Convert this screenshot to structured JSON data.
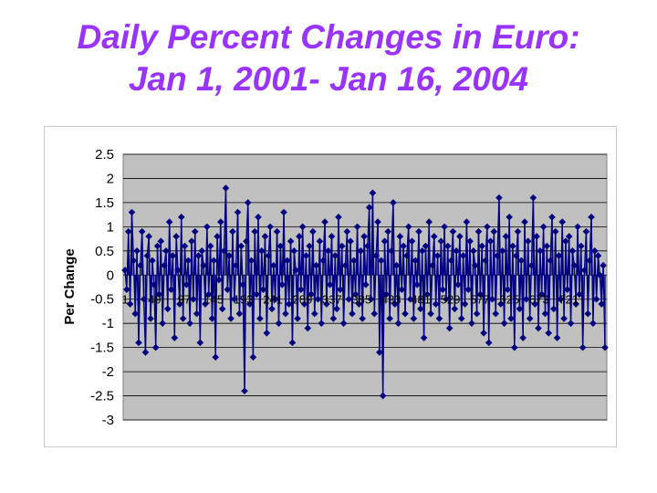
{
  "slide": {
    "title_line1": "Daily Percent Changes in Euro:",
    "title_line2": "Jan 1, 2001- Jan 16, 2004"
  },
  "colors": {
    "title": "#9933ff",
    "plot_background": "#c0c0c0",
    "series": "#000080",
    "gridline": "#000000"
  },
  "chart_data": {
    "type": "line",
    "title": "",
    "xlabel": "",
    "ylabel": "Per Change",
    "ylim": [
      -3,
      2.5
    ],
    "ytick_labels": [
      "2.5",
      "2",
      "1.5",
      "1",
      "0.5",
      "0",
      "-0.5",
      "-1",
      "-1.5",
      "-2",
      "-2.5",
      "-3"
    ],
    "xtick_labels": [
      "1",
      "49",
      "97",
      "145",
      "193",
      "241",
      "289",
      "337",
      "385",
      "433",
      "481",
      "529",
      "577",
      "625",
      "673",
      "721"
    ],
    "xlim": [
      1,
      780
    ],
    "grid": true,
    "legend": "none",
    "marker": "diamond",
    "series": [
      {
        "values": [
          0.1,
          -0.3,
          0.9,
          -0.6,
          1.3,
          0.3,
          -0.8,
          0.5,
          -1.4,
          0.2,
          0.9,
          -0.5,
          -1.6,
          0.4,
          0.8,
          -0.9,
          0.3,
          -0.2,
          -1.5,
          0.6,
          -0.4,
          0.7,
          -1.0,
          0.2,
          0.5,
          -0.7,
          1.1,
          -0.3,
          0.4,
          -1.3,
          0.8,
          0.1,
          -0.6,
          1.2,
          -0.9,
          0.6,
          -0.2,
          0.3,
          -1.0,
          0.7,
          -0.5,
          0.9,
          -0.8,
          0.4,
          -1.4,
          0.5,
          0.2,
          -0.6,
          1.0,
          -0.4,
          0.6,
          -0.9,
          0.3,
          -1.7,
          0.8,
          -0.1,
          1.1,
          -0.7,
          0.5,
          1.8,
          -0.3,
          0.4,
          -0.9,
          0.9,
          -0.5,
          0.2,
          1.3,
          -0.8,
          0.6,
          -0.2,
          -2.4,
          0.7,
          1.5,
          -0.6,
          0.3,
          -1.7,
          0.9,
          -0.4,
          1.2,
          -0.9,
          0.5,
          -0.3,
          0.8,
          -1.2,
          0.4,
          1.0,
          -0.7,
          0.2,
          -0.5,
          0.9,
          -1.0,
          0.6,
          -0.2,
          1.3,
          -0.8,
          0.3,
          -0.6,
          0.7,
          -1.4,
          0.5,
          0.1,
          -0.9,
          0.8,
          -0.3,
          1.0,
          -0.6,
          0.4,
          -1.1,
          0.6,
          -0.4,
          0.9,
          -0.8,
          0.2,
          -0.5,
          0.7,
          -1.0,
          0.3,
          1.1,
          -0.6,
          0.5,
          -0.2,
          0.8,
          -0.9,
          0.4,
          -0.7,
          1.2,
          -0.3,
          0.6,
          -1.0,
          0.2,
          0.9,
          -0.5,
          0.7,
          -0.8,
          0.3,
          -0.4,
          1.0,
          -0.6,
          0.5,
          -0.9,
          0.8,
          -0.2,
          0.6,
          1.4,
          -0.5,
          1.7,
          -0.8,
          0.4,
          1.1,
          -1.6,
          0.3,
          -2.5,
          0.7,
          -0.4,
          0.9,
          -0.9,
          0.5,
          1.5,
          -0.6,
          0.2,
          -1.0,
          0.8,
          -0.3,
          0.6,
          -0.8,
          0.4,
          1.0,
          -0.5,
          0.7,
          -0.9,
          0.3,
          -0.2,
          0.9,
          -0.7,
          0.5,
          -1.3,
          0.6,
          -0.4,
          1.1,
          -0.8,
          0.2,
          0.8,
          -0.6,
          0.4,
          -0.9,
          0.7,
          -0.3,
          1.0,
          -0.5,
          0.6,
          -1.1,
          0.3,
          0.9,
          -0.7,
          0.5,
          -0.2,
          0.8,
          -0.9,
          0.4,
          -0.6,
          1.1,
          -0.3,
          0.7,
          -1.0,
          0.5,
          0.2,
          -0.8,
          0.9,
          -0.4,
          0.6,
          -1.2,
          0.3,
          1.0,
          -1.4,
          0.7,
          -0.5,
          0.9,
          -0.8,
          0.4,
          1.6,
          -0.6,
          0.5,
          -1.0,
          0.8,
          -0.3,
          1.2,
          -0.9,
          0.6,
          -1.5,
          0.4,
          0.9,
          -0.7,
          0.3,
          -1.3,
          1.1,
          -0.5,
          0.7,
          -0.9,
          0.2,
          1.6,
          -0.6,
          0.8,
          -1.1,
          0.5,
          -0.4,
          1.0,
          -0.8,
          0.6,
          -1.2,
          0.3,
          1.2,
          -0.7,
          0.9,
          -1.3,
          0.4,
          -0.5,
          1.1,
          -0.9,
          0.7,
          -0.3,
          0.8,
          -1.0,
          0.5,
          0.2,
          -0.6,
          1.0,
          -0.4,
          0.6,
          -1.5,
          0.1,
          0.9,
          -0.8,
          0.3,
          1.2,
          -1.0,
          0.5,
          -0.5,
          0.4,
          0.0,
          -0.6,
          0.2,
          -1.5
        ]
      }
    ]
  }
}
